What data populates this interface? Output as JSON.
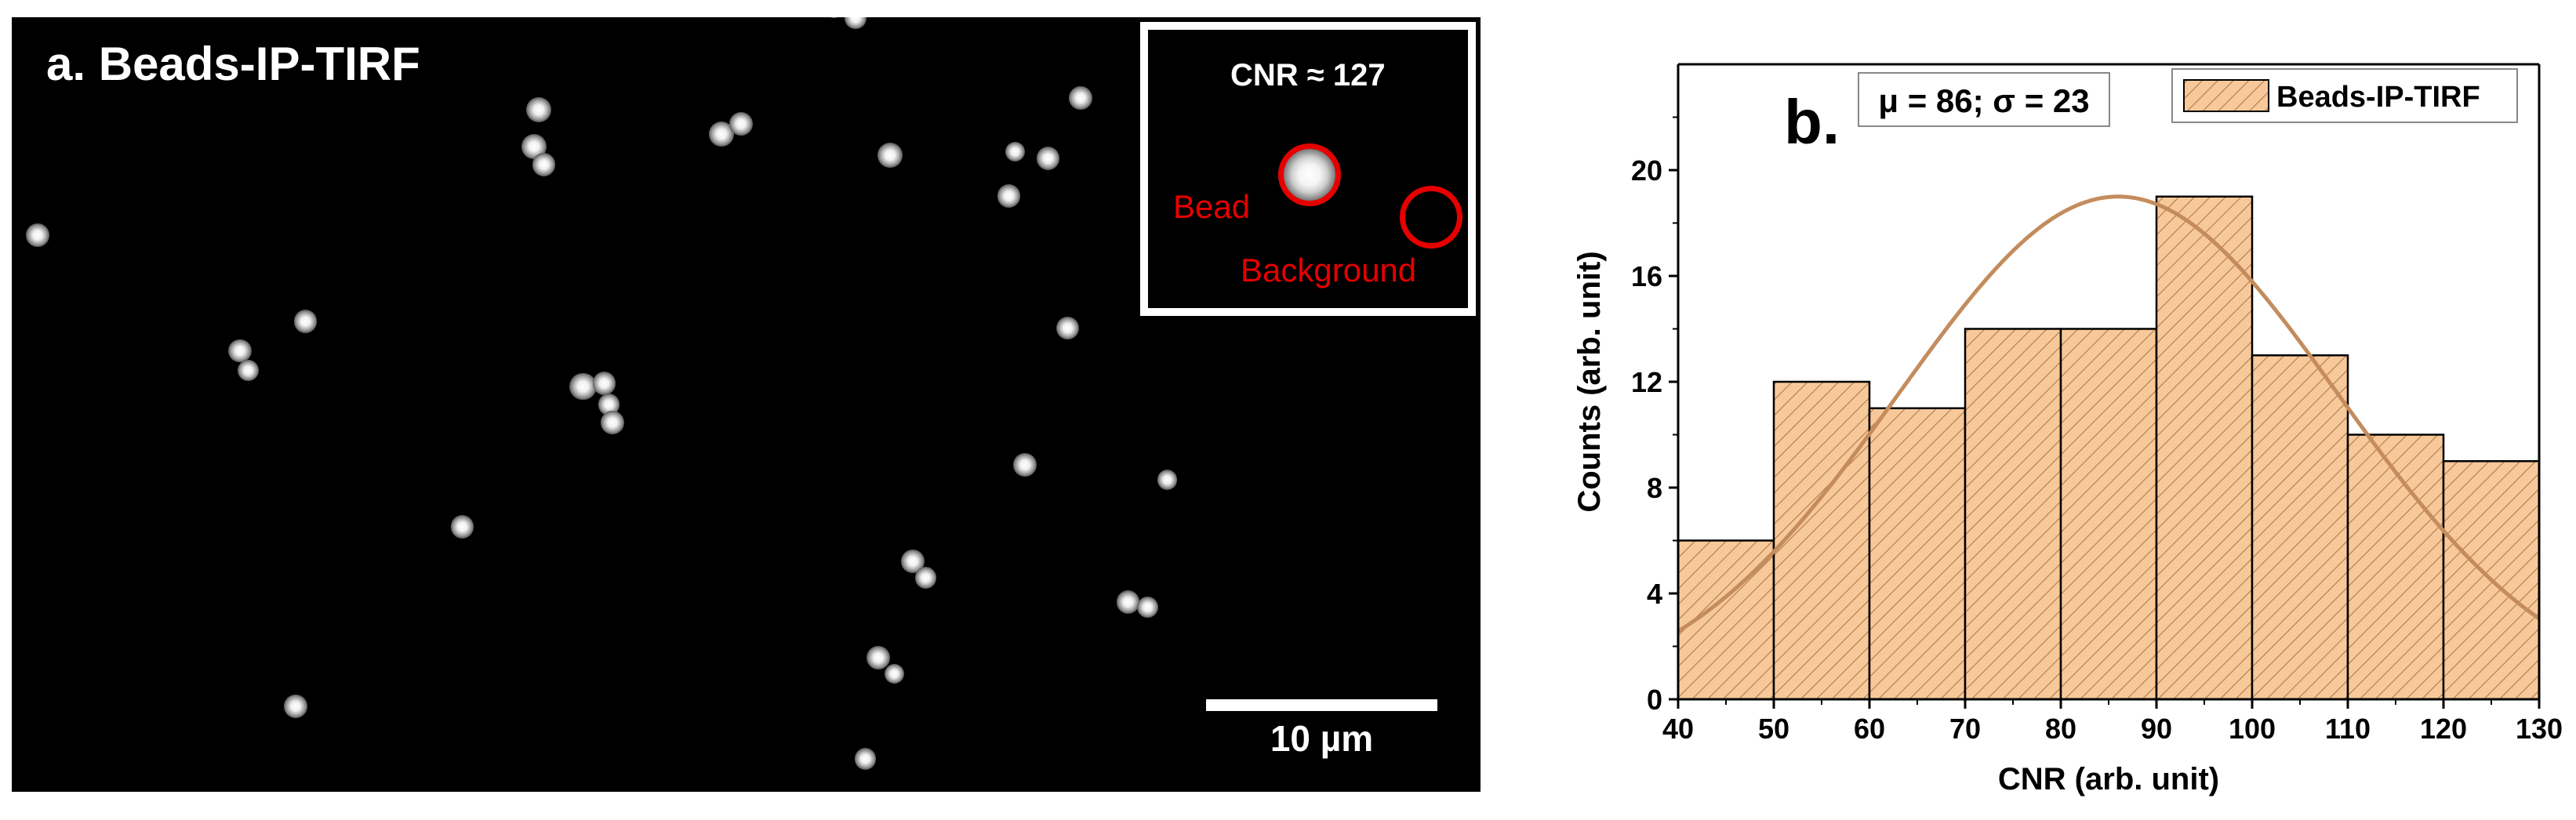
{
  "panel_a": {
    "label": "a. Beads-IP-TIRF",
    "inset": {
      "cnr_text": "CNR  ≈ 127",
      "bead_label": "Bead",
      "background_label": "Background",
      "ring_color": "#e60000"
    },
    "scale_bar": {
      "label": "10 µm"
    }
  },
  "chart_data": {
    "type": "bar",
    "subtype": "histogram",
    "panel_label": "b.",
    "title": "",
    "xlabel": "CNR (arb. unit)",
    "ylabel": "Counts (arb. unit)",
    "xlim": [
      40,
      130
    ],
    "ylim": [
      0,
      24
    ],
    "xticks": [
      40,
      50,
      60,
      70,
      80,
      90,
      100,
      110,
      120,
      130
    ],
    "yticks": [
      0,
      4,
      8,
      12,
      16,
      20
    ],
    "bins": [
      [
        40,
        50
      ],
      [
        50,
        60
      ],
      [
        60,
        70
      ],
      [
        70,
        80
      ],
      [
        80,
        90
      ],
      [
        90,
        100
      ],
      [
        100,
        110
      ],
      [
        110,
        120
      ],
      [
        120,
        130
      ]
    ],
    "values": [
      6,
      12,
      11,
      14,
      14,
      19,
      13,
      10,
      9
    ],
    "legend": {
      "label": "Beads-IP-TIRF",
      "placement": "top-right"
    },
    "stats_annotation": "μ = 86; σ = 23",
    "fit": {
      "type": "gaussian",
      "mu": 86,
      "sigma": 23,
      "peak": 19
    },
    "colors": {
      "bar_fill": "#f7c99a",
      "hatch": "#b07a48",
      "fit_line": "#c48c5c",
      "edge": "#000000"
    }
  }
}
